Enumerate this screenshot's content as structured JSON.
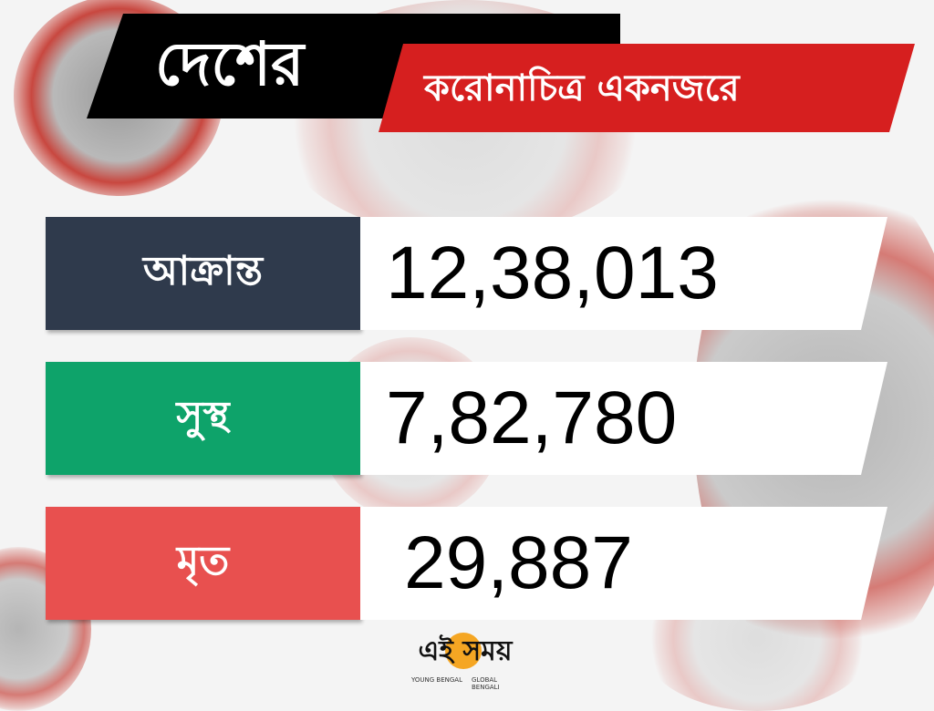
{
  "header": {
    "title": "দেশের",
    "subtitle": "করোনাচিত্র একনজরে"
  },
  "stats": [
    {
      "label": "আক্রান্ত",
      "value": "12,38,013",
      "color": "#2f3a4c"
    },
    {
      "label": "সুস্থ",
      "value": "7,82,780",
      "color": "#0ea36a"
    },
    {
      "label": "মৃত",
      "value": "29,887",
      "color": "#e8504f"
    }
  ],
  "logo": {
    "name": "এই সময়",
    "tagline_left": "YOUNG BENGAL",
    "tagline_right": "GLOBAL BENGALI",
    "color": "#f5a623"
  },
  "colors": {
    "banner_black": "#000000",
    "banner_red": "#d61f1f"
  }
}
